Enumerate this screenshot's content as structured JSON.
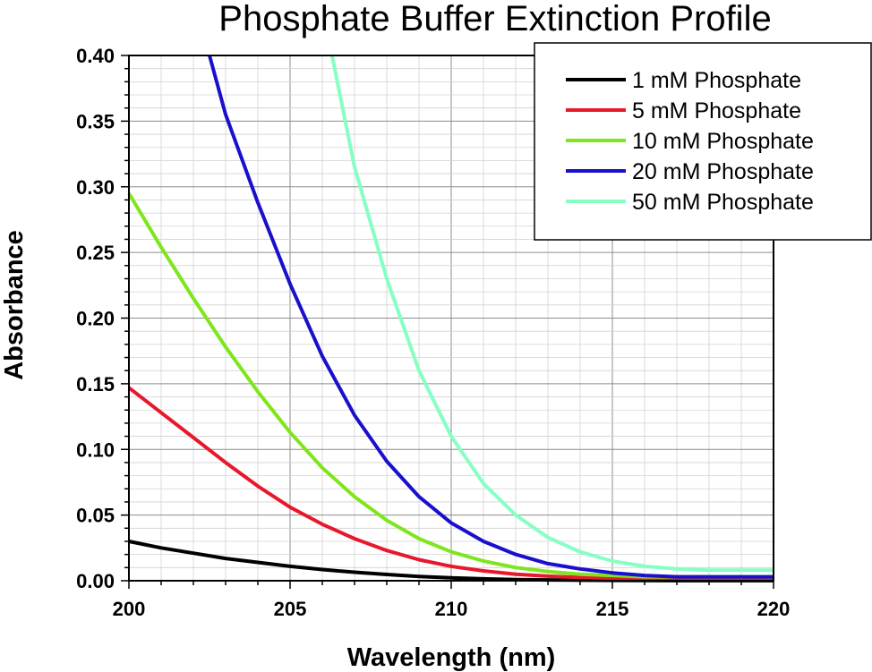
{
  "chart_data": {
    "type": "line",
    "title": "Phosphate Buffer Extinction Profile",
    "xlabel": "Wavelength (nm)",
    "ylabel": "Absorbance",
    "xlim": [
      200,
      220
    ],
    "ylim": [
      0,
      0.4
    ],
    "x_ticks": [
      "200",
      "205",
      "210",
      "215",
      "220"
    ],
    "y_ticks": [
      "0.00",
      "0.05",
      "0.10",
      "0.15",
      "0.20",
      "0.25",
      "0.30",
      "0.35",
      "0.40"
    ],
    "grid": true,
    "legend_position": "top-right",
    "x": [
      200,
      201,
      202,
      203,
      204,
      205,
      206,
      207,
      208,
      209,
      210,
      211,
      212,
      213,
      214,
      215,
      216,
      217,
      218,
      219,
      220
    ],
    "series": [
      {
        "name": "1 mM Phosphate",
        "color": "#000000",
        "values": [
          0.03,
          0.025,
          0.021,
          0.017,
          0.014,
          0.011,
          0.0085,
          0.0065,
          0.0048,
          0.0033,
          0.0022,
          0.0014,
          0.0009,
          0.0006,
          0.0004,
          0.0003,
          0.0002,
          0.0001,
          0.0001,
          0.0001,
          0.0001
        ]
      },
      {
        "name": "5 mM Phosphate",
        "color": "#e8182c",
        "values": [
          0.147,
          0.128,
          0.109,
          0.09,
          0.072,
          0.056,
          0.043,
          0.032,
          0.023,
          0.016,
          0.011,
          0.0075,
          0.005,
          0.0035,
          0.0025,
          0.002,
          0.0015,
          0.001,
          0.001,
          0.001,
          0.001
        ]
      },
      {
        "name": "10 mM Phosphate",
        "color": "#7ee61c",
        "values": [
          0.295,
          0.254,
          0.215,
          0.178,
          0.144,
          0.113,
          0.086,
          0.064,
          0.046,
          0.032,
          0.022,
          0.015,
          0.01,
          0.007,
          0.005,
          0.004,
          0.003,
          0.003,
          0.003,
          0.003,
          0.003
        ]
      },
      {
        "name": "20 mM Phosphate",
        "color": "#1a10cc",
        "x": [
          202.5,
          203,
          204,
          205,
          206,
          207,
          208,
          209,
          210,
          211,
          212,
          213,
          214,
          215,
          216,
          217,
          218,
          219,
          220
        ],
        "values": [
          0.4,
          0.355,
          0.288,
          0.226,
          0.171,
          0.126,
          0.091,
          0.064,
          0.044,
          0.03,
          0.02,
          0.013,
          0.009,
          0.006,
          0.004,
          0.003,
          0.003,
          0.003,
          0.003
        ]
      },
      {
        "name": "50 mM Phosphate",
        "color": "#86ffc4",
        "x": [
          206.3,
          207,
          208,
          209,
          210,
          211,
          212,
          213,
          214,
          215,
          216,
          217,
          218,
          219,
          220
        ],
        "values": [
          0.4,
          0.315,
          0.23,
          0.16,
          0.11,
          0.074,
          0.05,
          0.033,
          0.022,
          0.015,
          0.011,
          0.009,
          0.008,
          0.008,
          0.008
        ]
      }
    ]
  }
}
